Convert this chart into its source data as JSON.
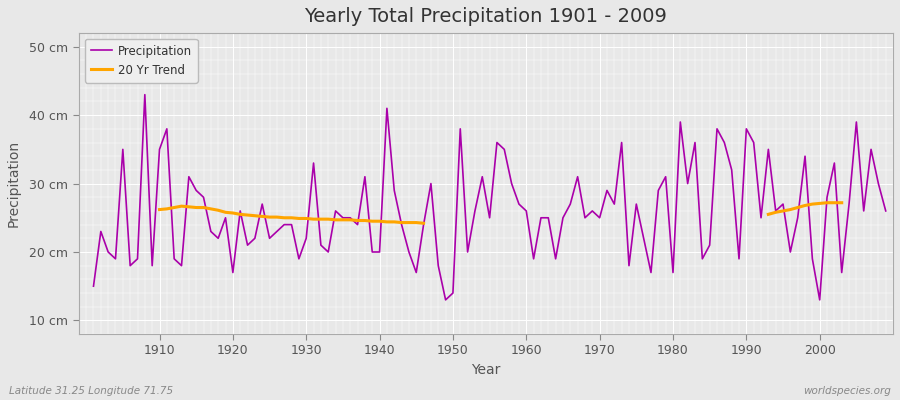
{
  "title": "Yearly Total Precipitation 1901 - 2009",
  "xlabel": "Year",
  "ylabel": "Precipitation",
  "subtitle": "Latitude 31.25 Longitude 71.75",
  "watermark": "worldspecies.org",
  "years": [
    1901,
    1902,
    1903,
    1904,
    1905,
    1906,
    1907,
    1908,
    1909,
    1910,
    1911,
    1912,
    1913,
    1914,
    1915,
    1916,
    1917,
    1918,
    1919,
    1920,
    1921,
    1922,
    1923,
    1924,
    1925,
    1926,
    1927,
    1928,
    1929,
    1930,
    1931,
    1932,
    1933,
    1934,
    1935,
    1936,
    1937,
    1938,
    1939,
    1940,
    1941,
    1942,
    1943,
    1944,
    1945,
    1946,
    1947,
    1948,
    1949,
    1950,
    1951,
    1952,
    1953,
    1954,
    1955,
    1956,
    1957,
    1958,
    1959,
    1960,
    1961,
    1962,
    1963,
    1964,
    1965,
    1966,
    1967,
    1968,
    1969,
    1970,
    1971,
    1972,
    1973,
    1974,
    1975,
    1976,
    1977,
    1978,
    1979,
    1980,
    1981,
    1982,
    1983,
    1984,
    1985,
    1986,
    1987,
    1988,
    1989,
    1990,
    1991,
    1992,
    1993,
    1994,
    1995,
    1996,
    1997,
    1998,
    1999,
    2000,
    2001,
    2002,
    2003,
    2004,
    2005,
    2006,
    2007,
    2008,
    2009
  ],
  "precip": [
    15,
    23,
    20,
    19,
    35,
    18,
    19,
    43,
    18,
    35,
    38,
    19,
    18,
    31,
    29,
    28,
    23,
    22,
    25,
    17,
    26,
    21,
    22,
    27,
    22,
    23,
    24,
    24,
    19,
    22,
    33,
    21,
    20,
    26,
    25,
    25,
    24,
    31,
    20,
    20,
    41,
    29,
    24,
    20,
    17,
    24,
    30,
    18,
    13,
    14,
    38,
    20,
    26,
    31,
    25,
    36,
    35,
    30,
    27,
    26,
    19,
    25,
    25,
    19,
    25,
    27,
    31,
    25,
    26,
    25,
    29,
    27,
    36,
    18,
    27,
    22,
    17,
    29,
    31,
    17,
    39,
    30,
    36,
    19,
    21,
    38,
    36,
    32,
    19,
    38,
    36,
    25,
    35,
    26,
    27,
    20,
    25,
    34,
    19,
    13,
    28,
    33,
    17,
    27,
    39,
    26,
    35,
    30,
    26
  ],
  "trend_segment1_years": [
    1910,
    1911,
    1912,
    1913,
    1914,
    1915,
    1916,
    1917,
    1918,
    1919,
    1920,
    1921,
    1922,
    1923,
    1924,
    1925,
    1926,
    1927,
    1928,
    1929,
    1930,
    1931,
    1932,
    1933,
    1934,
    1935,
    1936,
    1937,
    1938,
    1939,
    1940,
    1941,
    1942,
    1943,
    1944,
    1945,
    1946
  ],
  "trend_segment1_values": [
    26.2,
    26.3,
    26.5,
    26.7,
    26.6,
    26.5,
    26.5,
    26.3,
    26.1,
    25.8,
    25.7,
    25.5,
    25.4,
    25.3,
    25.2,
    25.1,
    25.1,
    25.0,
    25.0,
    24.9,
    24.9,
    24.8,
    24.8,
    24.8,
    24.7,
    24.7,
    24.7,
    24.6,
    24.6,
    24.5,
    24.5,
    24.4,
    24.4,
    24.3,
    24.3,
    24.3,
    24.2
  ],
  "trend_segment2_years": [
    1993,
    1994,
    1995,
    1996,
    1997,
    1998,
    1999,
    2000,
    2001,
    2002,
    2003
  ],
  "trend_segment2_values": [
    25.5,
    25.8,
    26.0,
    26.2,
    26.5,
    26.8,
    27.0,
    27.1,
    27.2,
    27.2,
    27.2
  ],
  "precip_color": "#AA00AA",
  "trend_color": "#FFA500",
  "bg_color": "#E8E8E8",
  "plot_bg_color": "#E8E8E8",
  "grid_color": "#FFFFFF",
  "fig_bg_color": "#E8E8E8",
  "ylim": [
    8,
    52
  ],
  "xlim": [
    1899,
    2010
  ],
  "yticks": [
    10,
    20,
    30,
    40,
    50
  ],
  "ytick_labels": [
    "10 cm",
    "20 cm",
    "30 cm",
    "40 cm",
    "50 cm"
  ],
  "xticks": [
    1910,
    1920,
    1930,
    1940,
    1950,
    1960,
    1970,
    1980,
    1990,
    2000
  ]
}
